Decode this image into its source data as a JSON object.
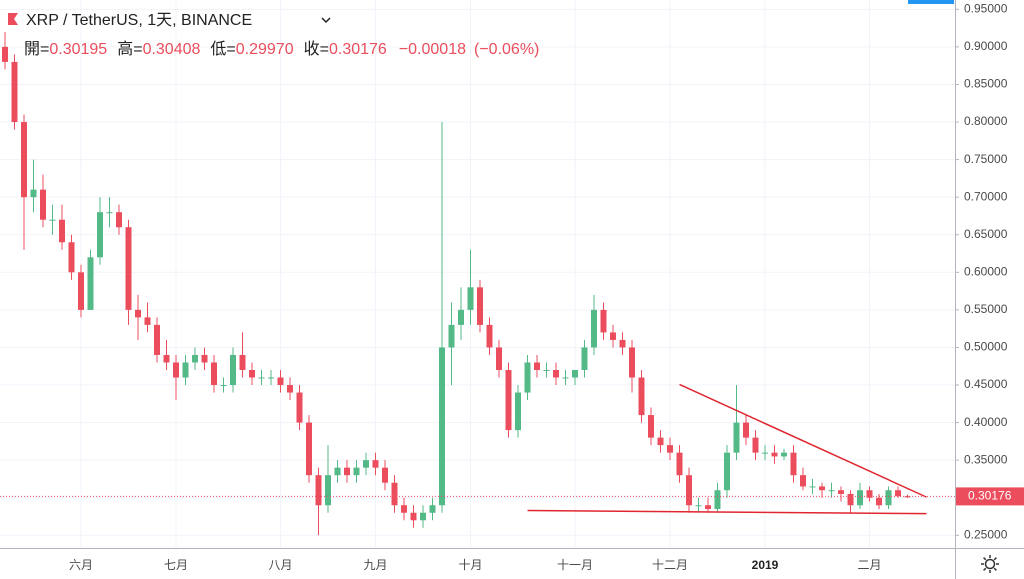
{
  "chart_data": {
    "type": "candlestick",
    "title": "XRP / TetherUS, 1天, BINANCE",
    "legend": [
      {
        "name": "開=",
        "text": "0.30195"
      },
      {
        "name": "高=",
        "text": "0.30408"
      },
      {
        "name": "低=",
        "text": "0.29970"
      },
      {
        "name": "收=",
        "text": "0.30176"
      }
    ],
    "change": "−0.00018",
    "change_pct": "(−0.06%)",
    "last_price_label": "0.30176",
    "up_color": "#53b987",
    "down_color": "#eb4d5c",
    "grid": true,
    "categories": [
      null,
      null,
      null,
      null,
      null,
      null,
      null,
      null,
      "六月",
      null,
      null,
      null,
      null,
      null,
      null,
      null,
      null,
      null,
      "七月",
      null,
      null,
      null,
      null,
      null,
      null,
      null,
      null,
      null,
      null,
      "八月",
      null,
      null,
      null,
      null,
      null,
      null,
      null,
      null,
      null,
      "九月",
      null,
      null,
      null,
      null,
      null,
      null,
      null,
      null,
      null,
      "十月",
      null,
      null,
      null,
      null,
      null,
      null,
      null,
      null,
      null,
      null,
      "十一月",
      null,
      null,
      null,
      null,
      null,
      null,
      null,
      null,
      null,
      "十二月",
      null,
      null,
      null,
      null,
      null,
      null,
      null,
      null,
      null,
      "2019",
      null,
      null,
      null,
      null,
      null,
      null,
      null,
      null,
      null,
      null,
      "二月",
      null,
      null,
      null,
      null
    ],
    "opens": [
      0.9,
      0.88,
      0.8,
      0.7,
      0.71,
      0.67,
      0.67,
      0.64,
      0.6,
      0.55,
      0.62,
      0.68,
      0.68,
      0.66,
      0.55,
      0.54,
      0.53,
      0.49,
      0.48,
      0.46,
      0.48,
      0.49,
      0.48,
      0.45,
      0.45,
      0.49,
      0.47,
      0.46,
      0.46,
      0.46,
      0.45,
      0.44,
      0.4,
      0.33,
      0.29,
      0.33,
      0.34,
      0.33,
      0.34,
      0.35,
      0.34,
      0.32,
      0.29,
      0.28,
      0.27,
      0.28,
      0.29,
      0.5,
      0.53,
      0.55,
      0.58,
      0.53,
      0.5,
      0.47,
      0.39,
      0.44,
      0.48,
      0.47,
      0.47,
      0.46,
      0.46,
      0.47,
      0.5,
      0.55,
      0.52,
      0.51,
      0.5,
      0.46,
      0.41,
      0.38,
      0.37,
      0.36,
      0.33,
      0.29,
      0.29,
      0.285,
      0.31,
      0.36,
      0.4,
      0.38,
      0.36,
      0.36,
      0.355,
      0.36,
      0.33,
      0.315,
      0.315,
      0.31,
      0.31,
      0.305,
      0.29,
      0.31,
      0.3,
      0.29,
      0.31,
      0.30195
    ],
    "highs": [
      0.92,
      0.89,
      0.81,
      0.75,
      0.73,
      0.69,
      0.69,
      0.65,
      0.61,
      0.63,
      0.7,
      0.7,
      0.69,
      0.67,
      0.57,
      0.56,
      0.54,
      0.51,
      0.49,
      0.49,
      0.5,
      0.5,
      0.49,
      0.46,
      0.5,
      0.52,
      0.48,
      0.47,
      0.47,
      0.47,
      0.46,
      0.45,
      0.41,
      0.34,
      0.37,
      0.35,
      0.35,
      0.35,
      0.36,
      0.36,
      0.35,
      0.33,
      0.3,
      0.29,
      0.29,
      0.3,
      0.8,
      0.56,
      0.58,
      0.63,
      0.59,
      0.54,
      0.51,
      0.48,
      0.45,
      0.49,
      0.49,
      0.48,
      0.48,
      0.47,
      0.47,
      0.51,
      0.57,
      0.56,
      0.53,
      0.52,
      0.51,
      0.47,
      0.42,
      0.39,
      0.38,
      0.37,
      0.34,
      0.3,
      0.3,
      0.32,
      0.37,
      0.45,
      0.41,
      0.39,
      0.37,
      0.37,
      0.365,
      0.37,
      0.34,
      0.325,
      0.32,
      0.32,
      0.315,
      0.31,
      0.32,
      0.315,
      0.305,
      0.315,
      0.315,
      0.30408
    ],
    "lows": [
      0.87,
      0.79,
      0.63,
      0.68,
      0.66,
      0.65,
      0.63,
      0.59,
      0.54,
      0.55,
      0.61,
      0.66,
      0.65,
      0.53,
      0.51,
      0.52,
      0.48,
      0.47,
      0.43,
      0.45,
      0.47,
      0.47,
      0.44,
      0.44,
      0.44,
      0.46,
      0.45,
      0.45,
      0.45,
      0.44,
      0.43,
      0.39,
      0.32,
      0.25,
      0.28,
      0.32,
      0.32,
      0.32,
      0.33,
      0.33,
      0.31,
      0.28,
      0.27,
      0.26,
      0.26,
      0.27,
      0.28,
      0.45,
      0.51,
      0.53,
      0.52,
      0.49,
      0.46,
      0.38,
      0.38,
      0.43,
      0.46,
      0.46,
      0.45,
      0.45,
      0.45,
      0.46,
      0.49,
      0.51,
      0.5,
      0.49,
      0.44,
      0.4,
      0.37,
      0.36,
      0.35,
      0.32,
      0.28,
      0.28,
      0.28,
      0.28,
      0.3,
      0.35,
      0.37,
      0.35,
      0.35,
      0.345,
      0.35,
      0.32,
      0.31,
      0.305,
      0.3,
      0.3,
      0.295,
      0.28,
      0.285,
      0.295,
      0.285,
      0.285,
      0.3,
      0.2997
    ],
    "closes": [
      0.88,
      0.8,
      0.7,
      0.71,
      0.67,
      0.67,
      0.64,
      0.6,
      0.55,
      0.62,
      0.68,
      0.68,
      0.66,
      0.55,
      0.54,
      0.53,
      0.49,
      0.48,
      0.46,
      0.48,
      0.49,
      0.48,
      0.45,
      0.45,
      0.49,
      0.47,
      0.46,
      0.46,
      0.46,
      0.45,
      0.44,
      0.4,
      0.33,
      0.29,
      0.33,
      0.34,
      0.33,
      0.34,
      0.35,
      0.34,
      0.32,
      0.29,
      0.28,
      0.27,
      0.28,
      0.29,
      0.5,
      0.53,
      0.55,
      0.58,
      0.53,
      0.5,
      0.47,
      0.39,
      0.44,
      0.48,
      0.47,
      0.47,
      0.46,
      0.46,
      0.47,
      0.5,
      0.55,
      0.52,
      0.51,
      0.5,
      0.46,
      0.41,
      0.38,
      0.37,
      0.36,
      0.33,
      0.29,
      0.29,
      0.285,
      0.31,
      0.36,
      0.4,
      0.38,
      0.36,
      0.36,
      0.355,
      0.36,
      0.33,
      0.315,
      0.315,
      0.31,
      0.31,
      0.305,
      0.29,
      0.31,
      0.3,
      0.29,
      0.31,
      0.302,
      0.30176
    ],
    "trendlines": [
      {
        "color": "#e0262f",
        "x": [
          71,
          97
        ],
        "y": [
          0.4507,
          0.3008
        ]
      },
      {
        "color": "#e0262f",
        "x": [
          55,
          97
        ],
        "y": [
          0.283,
          0.2788
        ]
      }
    ],
    "ylim": [
      0.2331,
      0.9624
    ],
    "yticks": [
      {
        "value": 0.25,
        "label": "0.25000"
      },
      {
        "value": 0.3,
        "label": "0.30000"
      },
      {
        "value": 0.35,
        "label": "0.35000"
      },
      {
        "value": 0.4,
        "label": "0.40000"
      },
      {
        "value": 0.45,
        "label": "0.45000"
      },
      {
        "value": 0.5,
        "label": "0.50000"
      },
      {
        "value": 0.55,
        "label": "0.55000"
      },
      {
        "value": 0.6,
        "label": "0.60000"
      },
      {
        "value": 0.65,
        "label": "0.65000"
      },
      {
        "value": 0.7,
        "label": "0.70000"
      },
      {
        "value": 0.75,
        "label": "0.75000"
      },
      {
        "value": 0.8,
        "label": "0.80000"
      },
      {
        "value": 0.85,
        "label": "0.85000"
      },
      {
        "value": 0.9,
        "label": "0.90000"
      },
      {
        "value": 0.95,
        "label": "0.95000"
      }
    ]
  }
}
